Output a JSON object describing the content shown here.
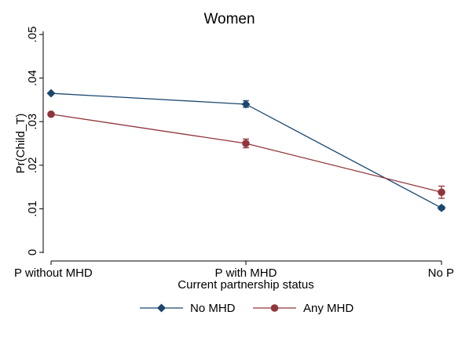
{
  "chart_data": {
    "type": "line",
    "title": "Women",
    "xlabel": "Current partnership status",
    "ylabel": "Pr(Child_T)",
    "categories": [
      "P without MHD",
      "P with MHD",
      "No P"
    ],
    "ylim": [
      0,
      0.05
    ],
    "yticks": [
      {
        "value": 0,
        "label": "0"
      },
      {
        "value": 0.01,
        "label": ".01"
      },
      {
        "value": 0.02,
        "label": ".02"
      },
      {
        "value": 0.03,
        "label": ".03"
      },
      {
        "value": 0.04,
        "label": ".04"
      },
      {
        "value": 0.05,
        "label": ".05"
      }
    ],
    "grid": false,
    "legend_position": "bottom",
    "series": [
      {
        "name": "No MHD",
        "color": "#1a476f",
        "marker": "diamond",
        "values": [
          0.0365,
          0.034,
          0.0102
        ],
        "ci_low": [
          0.0364,
          0.0333,
          0.0098
        ],
        "ci_high": [
          0.0366,
          0.0348,
          0.0106
        ]
      },
      {
        "name": "Any MHD",
        "color": "#90353b",
        "marker": "circle",
        "values": [
          0.0317,
          0.025,
          0.0138
        ],
        "ci_low": [
          0.0316,
          0.024,
          0.0124
        ],
        "ci_high": [
          0.0318,
          0.026,
          0.0152
        ]
      }
    ]
  }
}
